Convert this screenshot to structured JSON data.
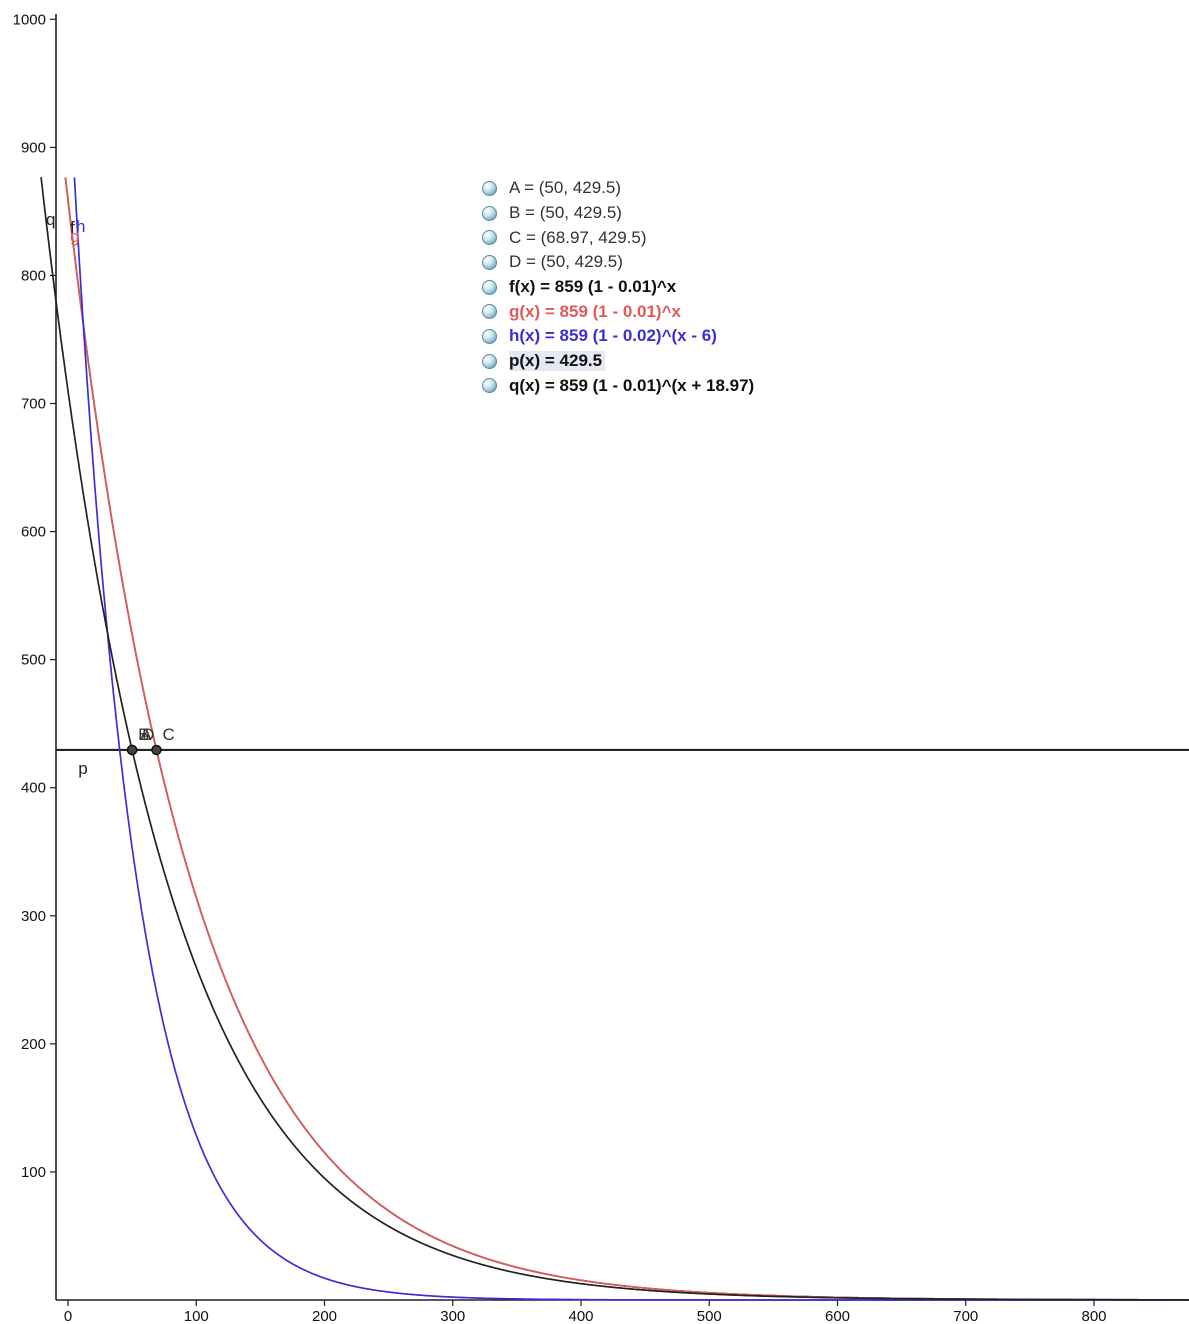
{
  "chart_data": {
    "type": "line",
    "title": "",
    "xlabel": "",
    "ylabel": "",
    "xlim": [
      -8,
      877
    ],
    "ylim": [
      0,
      1000
    ],
    "x_ticks": [
      0,
      100,
      200,
      300,
      400,
      500,
      600,
      700,
      800
    ],
    "y_ticks": [
      100,
      200,
      300,
      400,
      500,
      600,
      700,
      800,
      900,
      1000
    ],
    "grid": false,
    "series": [
      {
        "name": "f",
        "label": "f",
        "color": "#222222",
        "base": 859,
        "rate": 0.01,
        "shift": 0,
        "x_start": -2
      },
      {
        "name": "g",
        "label": "g",
        "color": "#e05a5a",
        "base": 859,
        "rate": 0.01,
        "shift": 0,
        "x_start": -2
      },
      {
        "name": "h",
        "label": "h",
        "color": "#3a2fd6",
        "base": 859,
        "rate": 0.02,
        "shift": -6,
        "x_start": -1
      },
      {
        "name": "q",
        "label": "q",
        "color": "#222222",
        "base": 859,
        "rate": 0.01,
        "shift": 18.97,
        "x_start": -21
      }
    ],
    "hline": {
      "name": "p",
      "label": "p",
      "y": 429.5,
      "color": "#222222"
    },
    "points": [
      {
        "label": "A",
        "x": 50,
        "y": 429.5
      },
      {
        "label": "B",
        "x": 50,
        "y": 429.5
      },
      {
        "label": "C",
        "x": 68.97,
        "y": 429.5
      },
      {
        "label": "D",
        "x": 50,
        "y": 429.5
      }
    ]
  },
  "algebra_view": [
    {
      "text": "A = (50, 429.5)",
      "color": "#333333",
      "style": "plain"
    },
    {
      "text": "B = (50, 429.5)",
      "color": "#333333",
      "style": "plain"
    },
    {
      "text": "C = (68.97, 429.5)",
      "color": "#333333",
      "style": "plain"
    },
    {
      "text": "D = (50, 429.5)",
      "color": "#333333",
      "style": "plain"
    },
    {
      "text": "f(x) = 859 (1 - 0.01)^x",
      "color": "#111111",
      "style": "bold"
    },
    {
      "text": "g(x) = 859 (1 - 0.01)^x",
      "color": "#e05a5a",
      "style": "bold"
    },
    {
      "text": "h(x) = 859 (1 - 0.02)^(x - 6)",
      "color": "#3a2fd6",
      "style": "bold"
    },
    {
      "text": "p(x) = 429.5",
      "color": "#111111",
      "style": "bold",
      "selected": true
    },
    {
      "text": "q(x) = 859 (1 - 0.01)^(x + 18.97)",
      "color": "#111111",
      "style": "bold"
    }
  ]
}
